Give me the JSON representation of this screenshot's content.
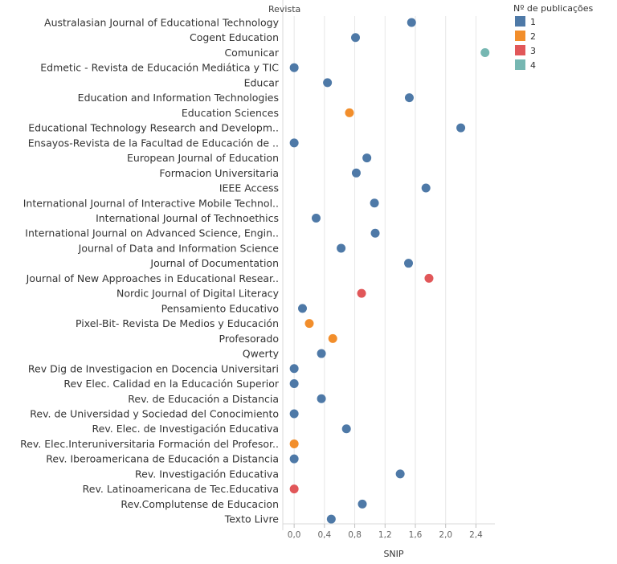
{
  "chart_data": {
    "type": "scatter",
    "row_header": "Revista",
    "xlabel": "SNIP",
    "xlim": [
      -0.15,
      2.65
    ],
    "xticks": [
      0.0,
      0.4,
      0.8,
      1.2,
      1.6,
      2.0,
      2.4
    ],
    "xtick_labels": [
      "0,0",
      "0,4",
      "0,8",
      "1,2",
      "1,6",
      "2,0",
      "2,4"
    ],
    "grid": "vertical",
    "legend": {
      "title": "Nº de publicações",
      "position": "top-right",
      "entries": [
        {
          "label": "1",
          "color": "#4e79a7"
        },
        {
          "label": "2",
          "color": "#f28e2b"
        },
        {
          "label": "3",
          "color": "#e15759"
        },
        {
          "label": "4",
          "color": "#76b7b2"
        }
      ]
    },
    "rows": [
      {
        "name": "Australasian Journal of Educational Technology",
        "snip": 1.55,
        "publications": 1
      },
      {
        "name": "Cogent Education",
        "snip": 0.81,
        "publications": 1
      },
      {
        "name": "Comunicar",
        "snip": 2.52,
        "publications": 4
      },
      {
        "name": "Edmetic - Revista de Educación Mediática y TIC",
        "snip": 0.0,
        "publications": 1
      },
      {
        "name": "Educar",
        "snip": 0.44,
        "publications": 1
      },
      {
        "name": "Education and Information Technologies",
        "snip": 1.52,
        "publications": 1
      },
      {
        "name": "Education Sciences",
        "snip": 0.73,
        "publications": 2
      },
      {
        "name": "Educational Technology Research and Developm..",
        "snip": 2.2,
        "publications": 1
      },
      {
        "name": "Ensayos-Revista de la Facultad de Educación de ..",
        "snip": 0.0,
        "publications": 1
      },
      {
        "name": "European Journal of Education",
        "snip": 0.96,
        "publications": 1
      },
      {
        "name": "Formacion Universitaria",
        "snip": 0.82,
        "publications": 1
      },
      {
        "name": "IEEE Access",
        "snip": 1.74,
        "publications": 1
      },
      {
        "name": "International Journal of Interactive Mobile Technol..",
        "snip": 1.06,
        "publications": 1
      },
      {
        "name": "International Journal of Technoethics",
        "snip": 0.29,
        "publications": 1
      },
      {
        "name": "International Journal on Advanced Science, Engin..",
        "snip": 1.07,
        "publications": 1
      },
      {
        "name": "Journal of Data and Information Science",
        "snip": 0.62,
        "publications": 1
      },
      {
        "name": "Journal of Documentation",
        "snip": 1.51,
        "publications": 1
      },
      {
        "name": "Journal of New Approaches in Educational Resear..",
        "snip": 1.78,
        "publications": 3
      },
      {
        "name": "Nordic Journal of Digital Literacy",
        "snip": 0.89,
        "publications": 3
      },
      {
        "name": "Pensamiento Educativo",
        "snip": 0.11,
        "publications": 1
      },
      {
        "name": "Pixel-Bit- Revista De Medios y Educación",
        "snip": 0.2,
        "publications": 2
      },
      {
        "name": "Profesorado",
        "snip": 0.51,
        "publications": 2
      },
      {
        "name": "Qwerty",
        "snip": 0.36,
        "publications": 1
      },
      {
        "name": "Rev Dig de Investigacion en Docencia Universitari",
        "snip": 0.0,
        "publications": 1
      },
      {
        "name": "Rev Elec. Calidad en la Educación Superior",
        "snip": 0.0,
        "publications": 1
      },
      {
        "name": "Rev. de Educación a Distancia",
        "snip": 0.36,
        "publications": 1
      },
      {
        "name": "Rev. de Universidad y Sociedad del Conocimiento",
        "snip": 0.0,
        "publications": 1
      },
      {
        "name": "Rev. Elec. de Investigación Educativa",
        "snip": 0.69,
        "publications": 1
      },
      {
        "name": "Rev. Elec.Interuniversitaria Formación del Profesor..",
        "snip": 0.0,
        "publications": 2
      },
      {
        "name": "Rev. Iberoamericana de Educación a  Distancia",
        "snip": 0.0,
        "publications": 1
      },
      {
        "name": "Rev. Investigación Educativa",
        "snip": 1.4,
        "publications": 1
      },
      {
        "name": "Rev. Latinoamericana de Tec.Educativa",
        "snip": 0.0,
        "publications": 3
      },
      {
        "name": "Rev.Complutense de Educacion",
        "snip": 0.9,
        "publications": 1
      },
      {
        "name": "Texto Livre",
        "snip": 0.49,
        "publications": 1
      }
    ]
  }
}
